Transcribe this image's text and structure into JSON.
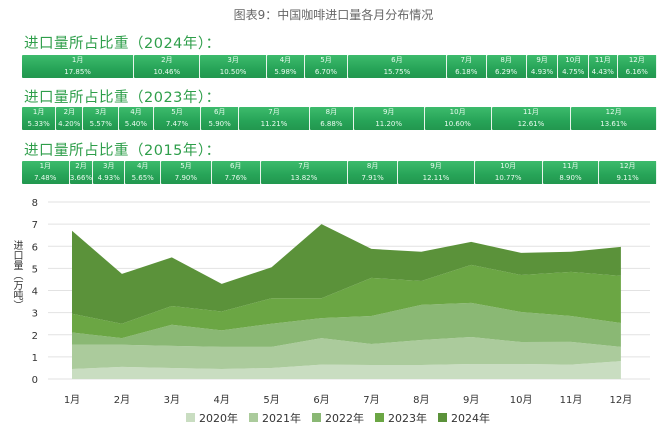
{
  "title": "图表9：中国咖啡进口量各月分布情况",
  "share_rows": [
    {
      "heading": "进口量所占比重（2024年）：",
      "items": [
        {
          "m": "1月",
          "p": "17.85%",
          "v": 17.85
        },
        {
          "m": "2月",
          "p": "10.46%",
          "v": 10.46
        },
        {
          "m": "3月",
          "p": "10.50%",
          "v": 10.5
        },
        {
          "m": "4月",
          "p": "5.98%",
          "v": 5.98
        },
        {
          "m": "5月",
          "p": "6.70%",
          "v": 6.7
        },
        {
          "m": "6月",
          "p": "15.75%",
          "v": 15.75
        },
        {
          "m": "7月",
          "p": "6.18%",
          "v": 6.18
        },
        {
          "m": "8月",
          "p": "6.29%",
          "v": 6.29
        },
        {
          "m": "9月",
          "p": "4.93%",
          "v": 4.93
        },
        {
          "m": "10月",
          "p": "4.75%",
          "v": 4.75
        },
        {
          "m": "11月",
          "p": "4.43%",
          "v": 4.43
        },
        {
          "m": "12月",
          "p": "6.16%",
          "v": 6.16
        }
      ]
    },
    {
      "heading": "进口量所占比重（2023年）：",
      "items": [
        {
          "m": "1月",
          "p": "5.33%",
          "v": 5.33
        },
        {
          "m": "2月",
          "p": "4.20%",
          "v": 4.2
        },
        {
          "m": "3月",
          "p": "5.57%",
          "v": 5.57
        },
        {
          "m": "4月",
          "p": "5.40%",
          "v": 5.4
        },
        {
          "m": "5月",
          "p": "7.47%",
          "v": 7.47
        },
        {
          "m": "6月",
          "p": "5.90%",
          "v": 5.9
        },
        {
          "m": "7月",
          "p": "11.21%",
          "v": 11.21
        },
        {
          "m": "8月",
          "p": "6.88%",
          "v": 6.88
        },
        {
          "m": "9月",
          "p": "11.20%",
          "v": 11.2
        },
        {
          "m": "10月",
          "p": "10.60%",
          "v": 10.6
        },
        {
          "m": "11月",
          "p": "12.61%",
          "v": 12.61
        },
        {
          "m": "12月",
          "p": "13.61%",
          "v": 13.61
        }
      ]
    },
    {
      "heading": "进口量所占比重（2015年）：",
      "items": [
        {
          "m": "1月",
          "p": "7.48%",
          "v": 7.48
        },
        {
          "m": "2月",
          "p": "3.66%",
          "v": 3.66
        },
        {
          "m": "3月",
          "p": "4.93%",
          "v": 4.93
        },
        {
          "m": "4月",
          "p": "5.65%",
          "v": 5.65
        },
        {
          "m": "5月",
          "p": "7.90%",
          "v": 7.9
        },
        {
          "m": "6月",
          "p": "7.76%",
          "v": 7.76
        },
        {
          "m": "7月",
          "p": "13.82%",
          "v": 13.82
        },
        {
          "m": "8月",
          "p": "7.91%",
          "v": 7.91
        },
        {
          "m": "9月",
          "p": "12.11%",
          "v": 12.11
        },
        {
          "m": "10月",
          "p": "10.77%",
          "v": 10.77
        },
        {
          "m": "11月",
          "p": "8.90%",
          "v": 8.9
        },
        {
          "m": "12月",
          "p": "9.11%",
          "v": 9.11
        }
      ]
    }
  ],
  "chart_data": {
    "type": "area",
    "stacked": true,
    "ylabel": "进口量（万吨）",
    "ylim": [
      0,
      8
    ],
    "yticks": [
      "0",
      "1",
      "2",
      "3",
      "4",
      "5",
      "6",
      "7",
      "8"
    ],
    "grid": true,
    "legend": "bottom",
    "categories": [
      "1月",
      "2月",
      "3月",
      "4月",
      "5月",
      "6月",
      "7月",
      "8月",
      "9月",
      "10月",
      "11月",
      "12月"
    ],
    "series": [
      {
        "name": "2020年",
        "color": "#c9ddc1",
        "values": [
          0.45,
          0.55,
          0.5,
          0.45,
          0.5,
          0.65,
          0.63,
          0.63,
          0.68,
          0.68,
          0.65,
          0.81
        ]
      },
      {
        "name": "2021年",
        "color": "#abcb9c",
        "values": [
          1.1,
          1.0,
          1.0,
          1.0,
          0.95,
          1.2,
          0.95,
          1.13,
          1.22,
          0.99,
          1.03,
          0.64
        ]
      },
      {
        "name": "2022年",
        "color": "#8ab874",
        "values": [
          0.55,
          0.3,
          0.95,
          0.75,
          1.05,
          0.9,
          1.27,
          1.59,
          1.54,
          1.36,
          1.17,
          1.08
        ]
      },
      {
        "name": "2023年",
        "color": "#6ba644",
        "values": [
          0.85,
          0.65,
          0.85,
          0.85,
          1.15,
          0.9,
          1.72,
          1.08,
          1.72,
          1.67,
          1.99,
          2.13
        ]
      },
      {
        "name": "2024年",
        "color": "#5b923a",
        "values": [
          3.75,
          2.25,
          2.2,
          1.25,
          1.4,
          3.35,
          1.31,
          1.32,
          1.04,
          1.0,
          0.91,
          1.31
        ]
      }
    ]
  }
}
